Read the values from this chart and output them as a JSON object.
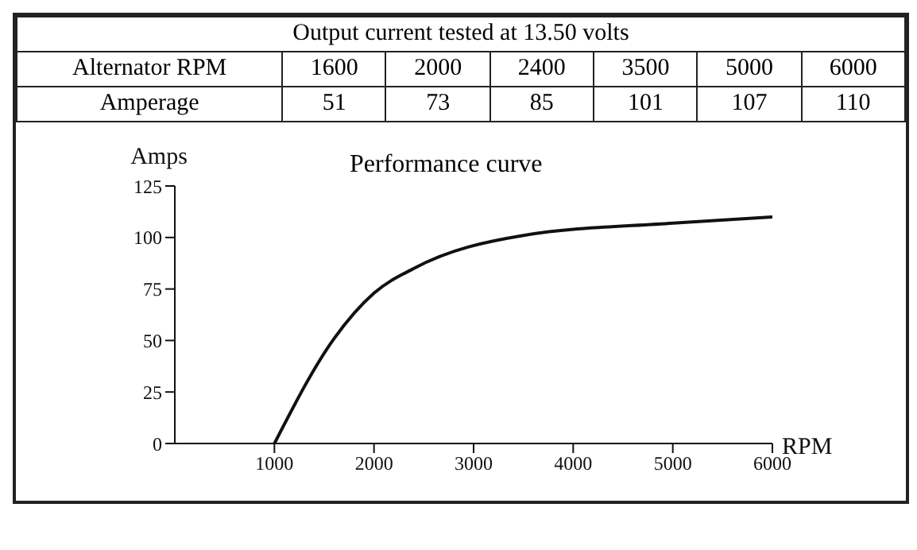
{
  "chart_data": [
    {
      "type": "other",
      "title": "Output current tested at 13.50 volts",
      "xlabel": "Alternator RPM",
      "ylabel": "Amperage",
      "categories": [
        "1600",
        "2000",
        "2400",
        "3500",
        "5000",
        "6000"
      ],
      "values": [
        51,
        73,
        85,
        101,
        107,
        110
      ],
      "data_labels": true
    },
    {
      "type": "line",
      "subtitle": "Performance curve",
      "xlabel": "RPM",
      "ylabel": "Amps",
      "x": [
        1000,
        1600,
        2000,
        2400,
        3500,
        5000,
        6000
      ],
      "series": [
        {
          "color": "#111111",
          "values": [
            0,
            51,
            73,
            85,
            101,
            107,
            110
          ]
        }
      ],
      "xlim": [
        0,
        6000
      ],
      "xticks": [
        1000,
        2000,
        3000,
        4000,
        5000,
        6000
      ],
      "ylim": [
        0,
        125
      ],
      "yticks": [
        0,
        25,
        50,
        75,
        100,
        125
      ],
      "grid": false,
      "legend": false,
      "marker": "none",
      "line_style": "solid"
    }
  ]
}
